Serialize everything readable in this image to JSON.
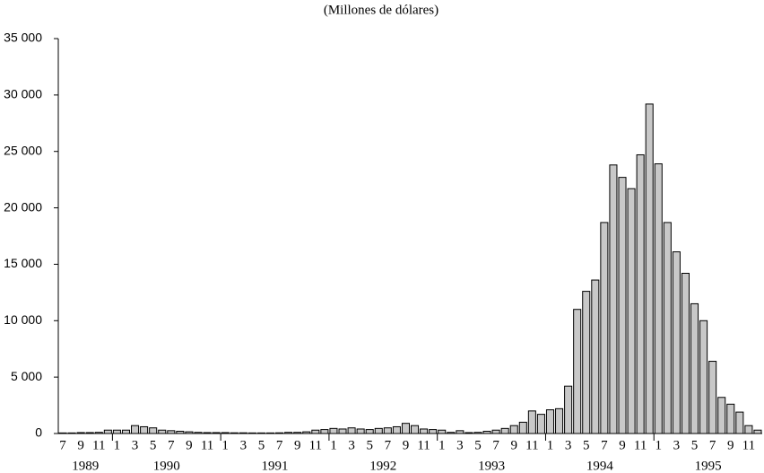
{
  "chart_data": {
    "type": "bar",
    "title": "(Millones de dólares)",
    "categories": [
      "7",
      null,
      "9",
      null,
      "11",
      null,
      "1",
      null,
      "3",
      null,
      "5",
      null,
      "7",
      null,
      "9",
      null,
      "11",
      null,
      "1",
      null,
      "3",
      null,
      "5",
      null,
      "7",
      null,
      "9",
      null,
      "11",
      null,
      "1",
      null,
      "3",
      null,
      "5",
      null,
      "7",
      null,
      "9",
      null,
      "11",
      null,
      "1",
      null,
      "3",
      null,
      "5",
      null,
      "7",
      null,
      "9",
      null,
      "11",
      null,
      "1",
      null,
      "3",
      null,
      "5",
      null,
      "7",
      null,
      "9",
      null,
      "11",
      null,
      "1",
      null,
      "3",
      null,
      "5",
      null,
      "7",
      null,
      "9",
      null,
      "11",
      null
    ],
    "years": [
      "1989",
      "1990",
      "1991",
      "1992",
      "1993",
      "1994",
      "1995"
    ],
    "values": [
      50,
      50,
      80,
      80,
      100,
      300,
      300,
      300,
      700,
      600,
      500,
      300,
      250,
      200,
      150,
      100,
      80,
      80,
      80,
      60,
      60,
      50,
      50,
      50,
      60,
      100,
      100,
      150,
      300,
      350,
      450,
      400,
      500,
      400,
      350,
      450,
      500,
      600,
      900,
      700,
      400,
      350,
      300,
      100,
      250,
      80,
      100,
      200,
      300,
      450,
      700,
      1000,
      2000,
      1700,
      2100,
      2200,
      4200,
      11000,
      12600,
      13600,
      18700,
      23800,
      22700,
      21700,
      24700,
      29200,
      23900,
      18700,
      16100,
      14200,
      11500,
      10000,
      6400,
      3200,
      2600,
      1900,
      700,
      300
    ],
    "color": "#c8c8c8",
    "ylim": [
      0,
      35000
    ],
    "yticks": [
      0,
      {
        "value": 5000,
        "label": "5 000"
      },
      {
        "value": 10000,
        "label": "10 000"
      },
      {
        "value": 15000,
        "label": "15 000"
      },
      {
        "value": 20000,
        "label": "20 000"
      },
      {
        "value": 25000,
        "label": "25 000"
      },
      {
        "value": 30000,
        "label": "30 000"
      },
      {
        "value": 35000,
        "label": "35 000"
      }
    ],
    "grid": false
  }
}
